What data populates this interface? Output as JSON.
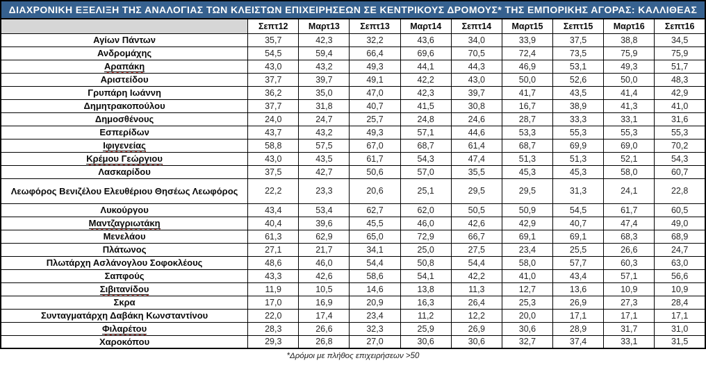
{
  "header": {
    "title": "ΔΙΑΧΡΟΝΙΚΗ ΕΞΕΛΙΞΗ ΤΗΣ ΑΝΑΛΟΓΙΑΣ ΤΩΝ ΚΛΕΙΣΤΩΝ ΕΠΙΧΕΙΡΗΣΕΩΝ ΣΕ ΚΕΝΤΡΙΚΟΥΣ ΔΡΟΜΟΥΣ* ΤΗΣ ΕΜΠΟΡΙΚΗΣ ΑΓΟΡΑΣ: ΚΑΛΛΙΘΕΑΣ"
  },
  "table": {
    "columns": [
      "Σεπτ12",
      "Μαρτ13",
      "Σεπτ13",
      "Μαρτ14",
      "Σεπτ14",
      "Μαρτ15",
      "Σεπτ15",
      "Μαρτ16",
      "Σεπτ16"
    ],
    "rows": [
      {
        "name": "Αγίων Πάντων",
        "underline": false,
        "tall": false,
        "values": [
          "35,7",
          "42,3",
          "32,2",
          "43,6",
          "34,0",
          "33,9",
          "37,5",
          "38,8",
          "34,5"
        ]
      },
      {
        "name": "Ανδρομάχης",
        "underline": false,
        "tall": false,
        "values": [
          "54,5",
          "59,4",
          "66,4",
          "69,6",
          "70,5",
          "72,4",
          "73,5",
          "75,9",
          "75,9"
        ]
      },
      {
        "name": "Αραπάκη",
        "underline": true,
        "tall": false,
        "values": [
          "43,0",
          "43,2",
          "49,3",
          "44,1",
          "44,3",
          "46,9",
          "53,1",
          "49,3",
          "51,7"
        ]
      },
      {
        "name": "Αριστείδου",
        "underline": false,
        "tall": false,
        "values": [
          "37,7",
          "39,7",
          "49,1",
          "42,2",
          "43,0",
          "50,0",
          "52,6",
          "50,0",
          "48,3"
        ]
      },
      {
        "name": "Γρυπάρη Ιωάννη",
        "underline": false,
        "tall": false,
        "values": [
          "36,2",
          "35,0",
          "47,0",
          "42,3",
          "39,7",
          "41,7",
          "43,5",
          "41,4",
          "42,9"
        ]
      },
      {
        "name": "Δημητρακοπούλου",
        "underline": false,
        "tall": false,
        "values": [
          "37,7",
          "31,8",
          "40,7",
          "41,5",
          "30,8",
          "16,7",
          "38,9",
          "41,3",
          "41,0"
        ]
      },
      {
        "name": "Δημοσθένους",
        "underline": false,
        "tall": false,
        "values": [
          "24,0",
          "24,7",
          "25,7",
          "24,8",
          "24,6",
          "28,7",
          "33,3",
          "33,1",
          "31,6"
        ]
      },
      {
        "name": "Εσπερίδων",
        "underline": false,
        "tall": false,
        "values": [
          "43,7",
          "43,2",
          "49,3",
          "57,1",
          "44,6",
          "53,3",
          "55,3",
          "55,3",
          "55,3"
        ]
      },
      {
        "name": "Ιφιγενείας",
        "underline": true,
        "tall": false,
        "values": [
          "58,8",
          "57,5",
          "67,0",
          "68,7",
          "61,4",
          "68,7",
          "69,9",
          "69,0",
          "70,2"
        ]
      },
      {
        "name": "Κρέμου Γεώργιου",
        "underline": true,
        "tall": false,
        "values": [
          "43,0",
          "43,5",
          "61,7",
          "54,3",
          "47,4",
          "51,3",
          "51,3",
          "52,1",
          "54,3"
        ]
      },
      {
        "name": "Λασκαρίδου",
        "underline": false,
        "tall": false,
        "values": [
          "37,5",
          "42,7",
          "50,6",
          "57,0",
          "35,5",
          "45,3",
          "45,3",
          "58,0",
          "60,7"
        ]
      },
      {
        "name": "Λεωφόρος Βενιζέλου Ελευθέριου Θησέως Λεωφόρος",
        "underline": false,
        "tall": true,
        "values": [
          "22,2",
          "23,3",
          "20,6",
          "25,1",
          "29,5",
          "29,5",
          "31,3",
          "24,1",
          "22,8"
        ]
      },
      {
        "name": "Λυκούργου",
        "underline": false,
        "tall": false,
        "values": [
          "43,4",
          "53,4",
          "62,7",
          "62,0",
          "50,5",
          "50,9",
          "54,5",
          "61,7",
          "60,5"
        ]
      },
      {
        "name": "Μαντζαγριωτάκη",
        "underline": true,
        "tall": false,
        "values": [
          "40,4",
          "39,6",
          "45,5",
          "46,0",
          "42,6",
          "42,9",
          "40,7",
          "47,4",
          "49,0"
        ]
      },
      {
        "name": "Μενελάου",
        "underline": false,
        "tall": false,
        "values": [
          "61,3",
          "62,9",
          "65,0",
          "72,9",
          "66,7",
          "69,1",
          "69,1",
          "68,3",
          "68,9"
        ]
      },
      {
        "name": "Πλάτωνος",
        "underline": false,
        "tall": false,
        "values": [
          "27,1",
          "21,7",
          "34,1",
          "25,0",
          "27,5",
          "23,4",
          "25,5",
          "26,6",
          "24,7"
        ]
      },
      {
        "name": "Πλωτάρχη Ασλάνογλου Σοφοκλέους",
        "underline": false,
        "tall": false,
        "values": [
          "48,6",
          "46,0",
          "54,4",
          "50,8",
          "54,4",
          "58,0",
          "57,7",
          "60,3",
          "63,0"
        ]
      },
      {
        "name": "Σαπφούς",
        "underline": false,
        "tall": false,
        "values": [
          "43,3",
          "42,6",
          "58,6",
          "54,1",
          "42,2",
          "41,0",
          "43,4",
          "57,1",
          "56,6"
        ]
      },
      {
        "name": "Σιβιτανίδου",
        "underline": true,
        "tall": false,
        "values": [
          "11,9",
          "10,5",
          "14,6",
          "13,8",
          "11,3",
          "12,7",
          "13,6",
          "10,9",
          "10,9"
        ]
      },
      {
        "name": "Σκρα",
        "underline": false,
        "tall": false,
        "values": [
          "17,0",
          "16,9",
          "20,9",
          "16,3",
          "26,4",
          "25,3",
          "26,9",
          "27,3",
          "28,4"
        ]
      },
      {
        "name": "Συνταγματάρχη Δαβάκη Κωνσταντίνου",
        "underline": false,
        "tall": false,
        "values": [
          "22,0",
          "17,4",
          "23,4",
          "11,2",
          "12,2",
          "20,0",
          "17,1",
          "17,1",
          "17,1"
        ]
      },
      {
        "name": "Φιλαρέτου",
        "underline": true,
        "tall": false,
        "values": [
          "28,3",
          "26,6",
          "32,3",
          "25,9",
          "26,9",
          "30,6",
          "28,9",
          "31,7",
          "31,0"
        ]
      },
      {
        "name": "Χαροκόπου",
        "underline": false,
        "tall": false,
        "values": [
          "29,3",
          "26,8",
          "27,0",
          "30,6",
          "30,6",
          "32,7",
          "37,4",
          "33,1",
          "31,5"
        ]
      }
    ]
  },
  "footnote": {
    "text": "*Δρόμοι με πλήθος επιχειρήσεων >50"
  },
  "colors": {
    "title_bg": "#36618F",
    "title_text": "#FFFFFF",
    "corner_bg": "#D6D6D6",
    "border": "#000000",
    "spellcheck_underline": "#D9352B"
  },
  "chart_data": {
    "type": "table",
    "title": "ΔΙΑΧΡΟΝΙΚΗ ΕΞΕΛΙΞΗ ΤΗΣ ΑΝΑΛΟΓΙΑΣ ΤΩΝ ΚΛΕΙΣΤΩΝ ΕΠΙΧΕΙΡΗΣΕΩΝ ΣΕ ΚΕΝΤΡΙΚΟΥΣ ΔΡΟΜΟΥΣ* ΤΗΣ ΕΜΠΟΡΙΚΗΣ ΑΓΟΡΑΣ: ΚΑΛΛΙΘΕΑΣ",
    "categories": [
      "Σεπτ12",
      "Μαρτ13",
      "Σεπτ13",
      "Μαρτ14",
      "Σεπτ14",
      "Μαρτ15",
      "Σεπτ15",
      "Μαρτ16",
      "Σεπτ16"
    ],
    "series": [
      {
        "name": "Αγίων Πάντων",
        "values": [
          35.7,
          42.3,
          32.2,
          43.6,
          34.0,
          33.9,
          37.5,
          38.8,
          34.5
        ]
      },
      {
        "name": "Ανδρομάχης",
        "values": [
          54.5,
          59.4,
          66.4,
          69.6,
          70.5,
          72.4,
          73.5,
          75.9,
          75.9
        ]
      },
      {
        "name": "Αραπάκη",
        "values": [
          43.0,
          43.2,
          49.3,
          44.1,
          44.3,
          46.9,
          53.1,
          49.3,
          51.7
        ]
      },
      {
        "name": "Αριστείδου",
        "values": [
          37.7,
          39.7,
          49.1,
          42.2,
          43.0,
          50.0,
          52.6,
          50.0,
          48.3
        ]
      },
      {
        "name": "Γρυπάρη Ιωάννη",
        "values": [
          36.2,
          35.0,
          47.0,
          42.3,
          39.7,
          41.7,
          43.5,
          41.4,
          42.9
        ]
      },
      {
        "name": "Δημητρακοπούλου",
        "values": [
          37.7,
          31.8,
          40.7,
          41.5,
          30.8,
          16.7,
          38.9,
          41.3,
          41.0
        ]
      },
      {
        "name": "Δημοσθένους",
        "values": [
          24.0,
          24.7,
          25.7,
          24.8,
          24.6,
          28.7,
          33.3,
          33.1,
          31.6
        ]
      },
      {
        "name": "Εσπερίδων",
        "values": [
          43.7,
          43.2,
          49.3,
          57.1,
          44.6,
          53.3,
          55.3,
          55.3,
          55.3
        ]
      },
      {
        "name": "Ιφιγενείας",
        "values": [
          58.8,
          57.5,
          67.0,
          68.7,
          61.4,
          68.7,
          69.9,
          69.0,
          70.2
        ]
      },
      {
        "name": "Κρέμου Γεώργιου",
        "values": [
          43.0,
          43.5,
          61.7,
          54.3,
          47.4,
          51.3,
          51.3,
          52.1,
          54.3
        ]
      },
      {
        "name": "Λασκαρίδου",
        "values": [
          37.5,
          42.7,
          50.6,
          57.0,
          35.5,
          45.3,
          45.3,
          58.0,
          60.7
        ]
      },
      {
        "name": "Λεωφόρος Βενιζέλου Ελευθέριου Θησέως Λεωφόρος",
        "values": [
          22.2,
          23.3,
          20.6,
          25.1,
          29.5,
          29.5,
          31.3,
          24.1,
          22.8
        ]
      },
      {
        "name": "Λυκούργου",
        "values": [
          43.4,
          53.4,
          62.7,
          62.0,
          50.5,
          50.9,
          54.5,
          61.7,
          60.5
        ]
      },
      {
        "name": "Μαντζαγριωτάκη",
        "values": [
          40.4,
          39.6,
          45.5,
          46.0,
          42.6,
          42.9,
          40.7,
          47.4,
          49.0
        ]
      },
      {
        "name": "Μενελάου",
        "values": [
          61.3,
          62.9,
          65.0,
          72.9,
          66.7,
          69.1,
          69.1,
          68.3,
          68.9
        ]
      },
      {
        "name": "Πλάτωνος",
        "values": [
          27.1,
          21.7,
          34.1,
          25.0,
          27.5,
          23.4,
          25.5,
          26.6,
          24.7
        ]
      },
      {
        "name": "Πλωτάρχη Ασλάνογλου Σοφοκλέους",
        "values": [
          48.6,
          46.0,
          54.4,
          50.8,
          54.4,
          58.0,
          57.7,
          60.3,
          63.0
        ]
      },
      {
        "name": "Σαπφούς",
        "values": [
          43.3,
          42.6,
          58.6,
          54.1,
          42.2,
          41.0,
          43.4,
          57.1,
          56.6
        ]
      },
      {
        "name": "Σιβιτανίδου",
        "values": [
          11.9,
          10.5,
          14.6,
          13.8,
          11.3,
          12.7,
          13.6,
          10.9,
          10.9
        ]
      },
      {
        "name": "Σκρα",
        "values": [
          17.0,
          16.9,
          20.9,
          16.3,
          26.4,
          25.3,
          26.9,
          27.3,
          28.4
        ]
      },
      {
        "name": "Συνταγματάρχη Δαβάκη Κωνσταντίνου",
        "values": [
          22.0,
          17.4,
          23.4,
          11.2,
          12.2,
          20.0,
          17.1,
          17.1,
          17.1
        ]
      },
      {
        "name": "Φιλαρέτου",
        "values": [
          28.3,
          26.6,
          32.3,
          25.9,
          26.9,
          30.6,
          28.9,
          31.7,
          31.0
        ]
      },
      {
        "name": "Χαροκόπου",
        "values": [
          29.3,
          26.8,
          27.0,
          30.6,
          30.6,
          32.7,
          37.4,
          33.1,
          31.5
        ]
      }
    ],
    "footnote": "*Δρόμοι με πλήθος επιχειρήσεων >50",
    "value_unit": "percent",
    "layout": {
      "header_row": true,
      "grid": true,
      "first_column": "street"
    }
  }
}
